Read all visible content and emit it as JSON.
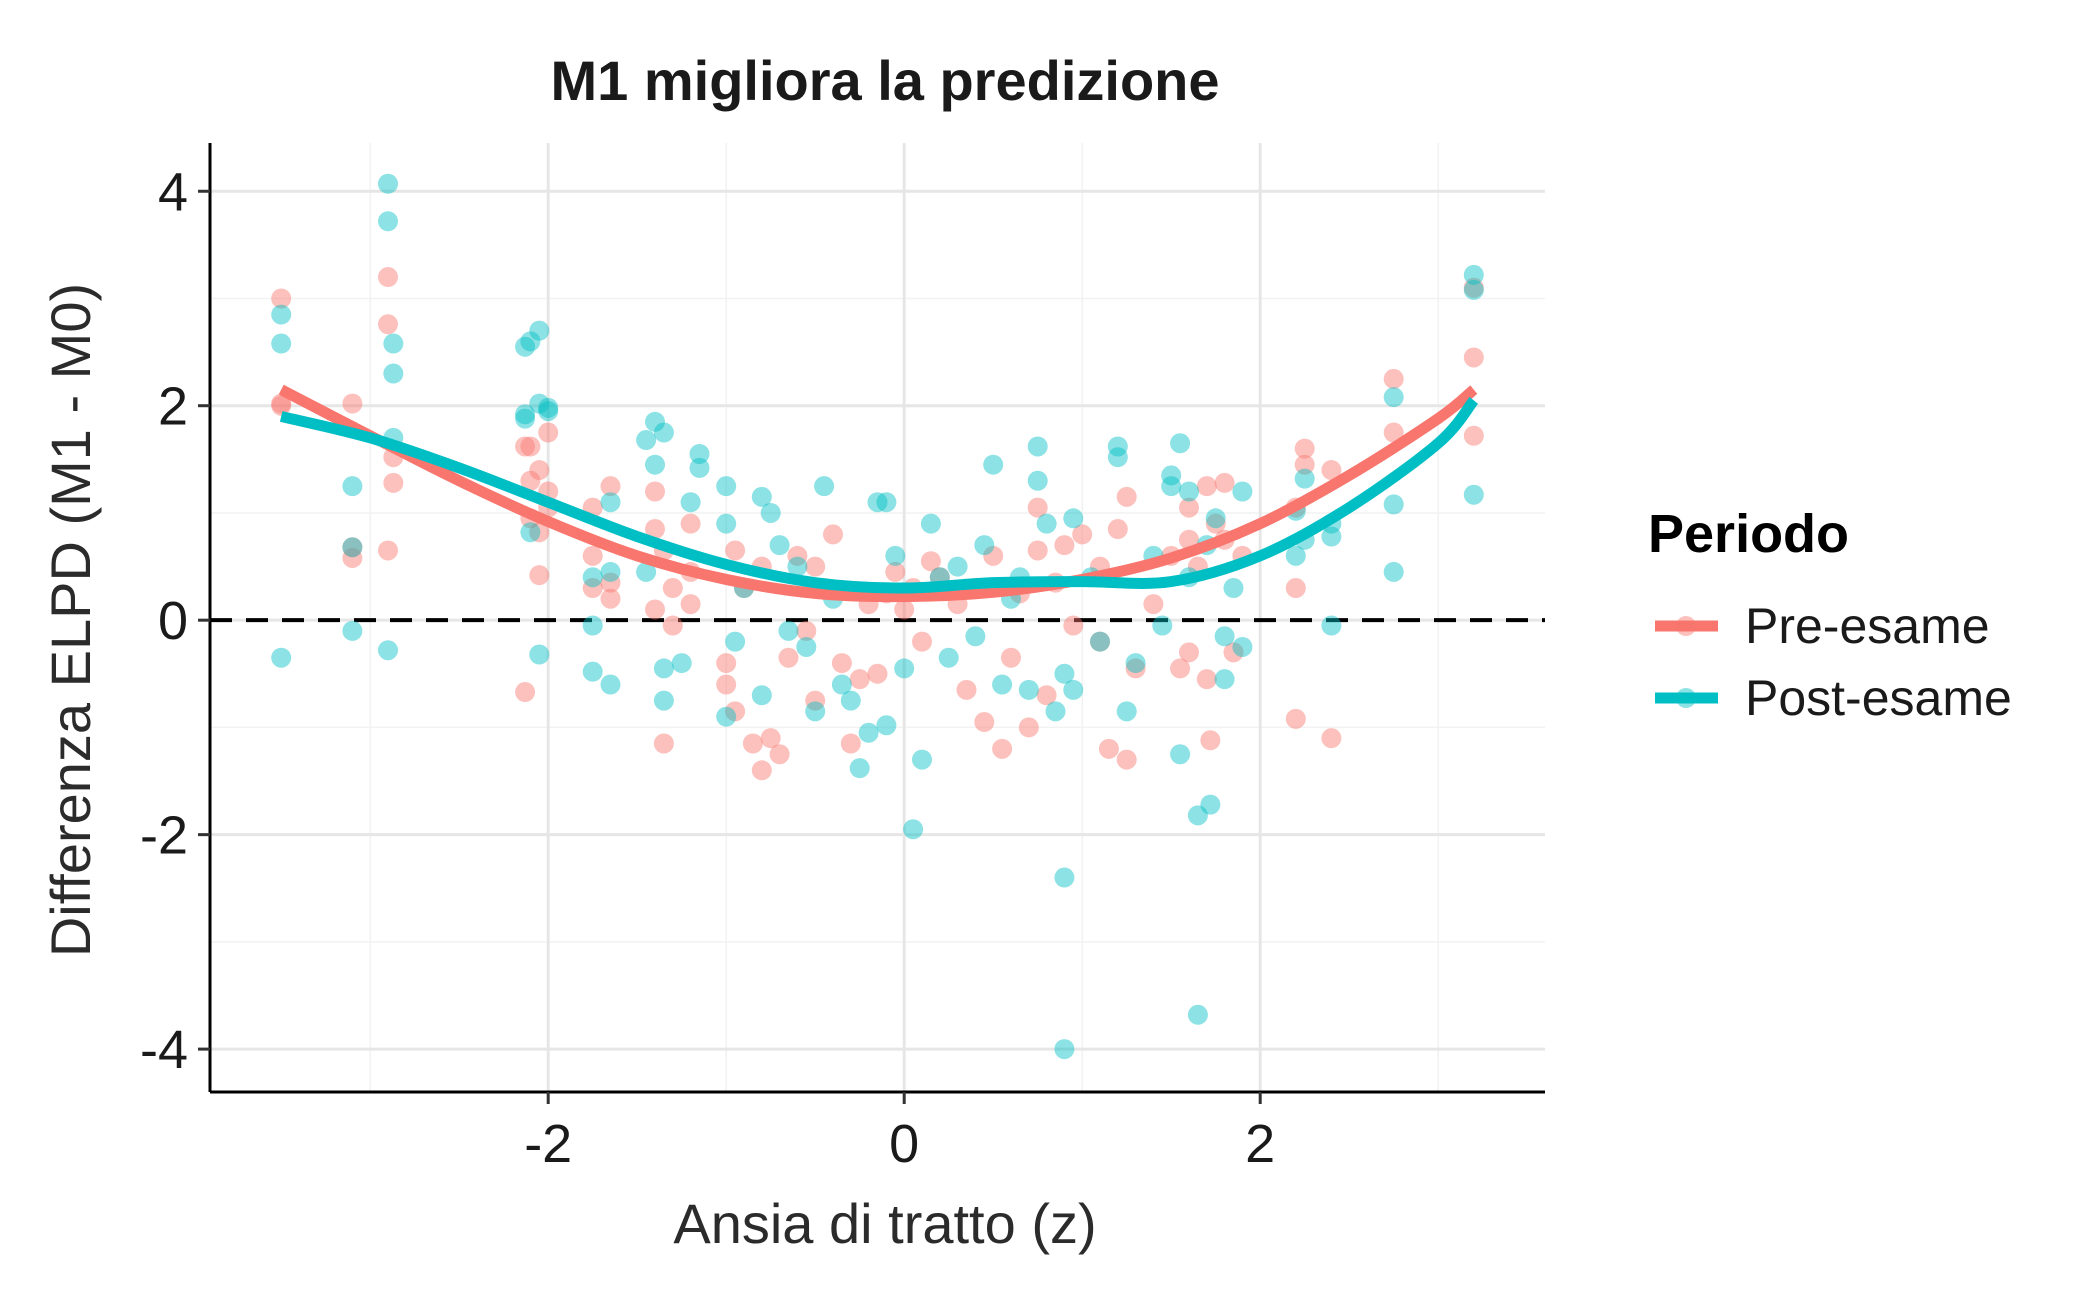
{
  "chart_data": {
    "type": "scatter",
    "title": "M1 migliora la predizione",
    "xlabel": "Ansia di tratto (z)",
    "ylabel": "Differenza ELPD (M1 - M0)",
    "xlim": [
      -3.9,
      3.6
    ],
    "ylim": [
      -4.4,
      4.45
    ],
    "xticks": [
      -2,
      0,
      2
    ],
    "xtick_labels": [
      "-2",
      "0",
      "2"
    ],
    "yticks": [
      -4,
      -2,
      0,
      2,
      4
    ],
    "ytick_labels": [
      "-4",
      "-2",
      "0",
      "2",
      "4"
    ],
    "grid": true,
    "reference_line": {
      "y": 0,
      "style": "dashed",
      "color": "#000000"
    },
    "legend": {
      "title": "Periodo",
      "position": "right"
    },
    "series": [
      {
        "name": "Pre-esame",
        "color": "#F8766D",
        "points": [
          [
            -3.5,
            3.0
          ],
          [
            -3.5,
            2.0
          ],
          [
            -3.5,
            2.02
          ],
          [
            -3.1,
            2.02
          ],
          [
            -3.1,
            0.58
          ],
          [
            -3.1,
            0.68
          ],
          [
            -2.9,
            3.2
          ],
          [
            -2.9,
            2.76
          ],
          [
            -2.9,
            0.65
          ],
          [
            -2.87,
            1.28
          ],
          [
            -2.87,
            1.52
          ],
          [
            -2.13,
            1.62
          ],
          [
            -2.13,
            -0.67
          ],
          [
            -2.1,
            1.62
          ],
          [
            -2.1,
            1.3
          ],
          [
            -2.1,
            0.95
          ],
          [
            -2.05,
            1.4
          ],
          [
            -2.05,
            0.82
          ],
          [
            -2.05,
            0.42
          ],
          [
            -2.0,
            1.75
          ],
          [
            -2.0,
            1.2
          ],
          [
            -2.0,
            1.05
          ],
          [
            -1.75,
            0.6
          ],
          [
            -1.75,
            0.3
          ],
          [
            -1.75,
            1.05
          ],
          [
            -1.65,
            1.25
          ],
          [
            -1.65,
            0.2
          ],
          [
            -1.65,
            0.35
          ],
          [
            -1.4,
            1.2
          ],
          [
            -1.4,
            0.85
          ],
          [
            -1.4,
            0.1
          ],
          [
            -1.35,
            -1.15
          ],
          [
            -1.35,
            0.65
          ],
          [
            -1.3,
            0.3
          ],
          [
            -1.3,
            -0.05
          ],
          [
            -1.2,
            0.9
          ],
          [
            -1.2,
            0.15
          ],
          [
            -1.2,
            0.45
          ],
          [
            -1.0,
            -0.4
          ],
          [
            -1.0,
            -0.6
          ],
          [
            -0.95,
            -0.85
          ],
          [
            -0.95,
            0.65
          ],
          [
            -0.9,
            0.3
          ],
          [
            -0.85,
            -1.15
          ],
          [
            -0.8,
            -1.4
          ],
          [
            -0.8,
            0.5
          ],
          [
            -0.75,
            -1.1
          ],
          [
            -0.7,
            -1.25
          ],
          [
            -0.65,
            -0.35
          ],
          [
            -0.6,
            0.6
          ],
          [
            -0.55,
            -0.1
          ],
          [
            -0.5,
            -0.75
          ],
          [
            -0.5,
            0.5
          ],
          [
            -0.45,
            0.3
          ],
          [
            -0.4,
            0.8
          ],
          [
            -0.35,
            -0.4
          ],
          [
            -0.3,
            -1.15
          ],
          [
            -0.25,
            -0.55
          ],
          [
            -0.2,
            0.15
          ],
          [
            -0.15,
            -0.5
          ],
          [
            -0.1,
            0.25
          ],
          [
            -0.05,
            0.45
          ],
          [
            0.0,
            0.1
          ],
          [
            0.05,
            0.3
          ],
          [
            0.1,
            -0.2
          ],
          [
            0.15,
            0.55
          ],
          [
            0.2,
            0.4
          ],
          [
            0.3,
            0.15
          ],
          [
            0.35,
            -0.65
          ],
          [
            0.4,
            0.3
          ],
          [
            0.45,
            -0.95
          ],
          [
            0.5,
            0.6
          ],
          [
            0.55,
            -1.2
          ],
          [
            0.6,
            -0.35
          ],
          [
            0.65,
            0.25
          ],
          [
            0.7,
            -1.0
          ],
          [
            0.75,
            1.05
          ],
          [
            0.75,
            0.65
          ],
          [
            0.8,
            -0.7
          ],
          [
            0.85,
            0.35
          ],
          [
            0.9,
            0.7
          ],
          [
            0.95,
            -0.05
          ],
          [
            1.0,
            0.8
          ],
          [
            1.1,
            0.5
          ],
          [
            1.1,
            -0.2
          ],
          [
            1.15,
            -1.2
          ],
          [
            1.2,
            0.85
          ],
          [
            1.25,
            1.15
          ],
          [
            1.25,
            -1.3
          ],
          [
            1.3,
            -0.45
          ],
          [
            1.4,
            0.15
          ],
          [
            1.5,
            0.6
          ],
          [
            1.55,
            -0.45
          ],
          [
            1.6,
            1.05
          ],
          [
            1.6,
            0.75
          ],
          [
            1.6,
            -0.3
          ],
          [
            1.65,
            0.5
          ],
          [
            1.7,
            1.25
          ],
          [
            1.7,
            -0.55
          ],
          [
            1.72,
            -1.12
          ],
          [
            1.75,
            0.9
          ],
          [
            1.8,
            1.28
          ],
          [
            1.8,
            0.75
          ],
          [
            1.85,
            -0.3
          ],
          [
            1.9,
            0.6
          ],
          [
            2.2,
            1.05
          ],
          [
            2.2,
            0.3
          ],
          [
            2.2,
            -0.92
          ],
          [
            2.25,
            1.6
          ],
          [
            2.25,
            1.45
          ],
          [
            2.4,
            1.4
          ],
          [
            2.4,
            -1.1
          ],
          [
            2.75,
            2.25
          ],
          [
            2.75,
            1.75
          ],
          [
            3.2,
            2.45
          ],
          [
            3.2,
            1.72
          ],
          [
            3.2,
            3.1
          ]
        ],
        "trend": [
          [
            -3.5,
            2.15
          ],
          [
            -3.0,
            1.72
          ],
          [
            -2.5,
            1.3
          ],
          [
            -2.0,
            0.92
          ],
          [
            -1.5,
            0.6
          ],
          [
            -1.0,
            0.38
          ],
          [
            -0.5,
            0.25
          ],
          [
            0.0,
            0.22
          ],
          [
            0.5,
            0.26
          ],
          [
            1.0,
            0.38
          ],
          [
            1.5,
            0.58
          ],
          [
            2.0,
            0.9
          ],
          [
            2.5,
            1.35
          ],
          [
            3.0,
            1.88
          ],
          [
            3.2,
            2.15
          ]
        ]
      },
      {
        "name": "Post-esame",
        "color": "#00BFC4",
        "points": [
          [
            -3.5,
            2.85
          ],
          [
            -3.5,
            2.58
          ],
          [
            -3.5,
            -0.35
          ],
          [
            -3.1,
            1.25
          ],
          [
            -3.1,
            0.68
          ],
          [
            -3.1,
            -0.1
          ],
          [
            -2.9,
            4.07
          ],
          [
            -2.9,
            3.72
          ],
          [
            -2.9,
            -0.28
          ],
          [
            -2.87,
            2.58
          ],
          [
            -2.87,
            2.3
          ],
          [
            -2.87,
            1.7
          ],
          [
            -2.13,
            2.55
          ],
          [
            -2.13,
            1.92
          ],
          [
            -2.13,
            1.88
          ],
          [
            -2.1,
            2.6
          ],
          [
            -2.1,
            0.82
          ],
          [
            -2.05,
            2.7
          ],
          [
            -2.05,
            2.02
          ],
          [
            -2.05,
            -0.32
          ],
          [
            -2.0,
            1.98
          ],
          [
            -2.0,
            1.95
          ],
          [
            -1.75,
            0.4
          ],
          [
            -1.75,
            -0.05
          ],
          [
            -1.75,
            -0.48
          ],
          [
            -1.65,
            1.1
          ],
          [
            -1.65,
            -0.6
          ],
          [
            -1.65,
            0.45
          ],
          [
            -1.45,
            1.68
          ],
          [
            -1.45,
            0.45
          ],
          [
            -1.4,
            1.85
          ],
          [
            -1.4,
            1.45
          ],
          [
            -1.35,
            1.75
          ],
          [
            -1.35,
            -0.45
          ],
          [
            -1.35,
            -0.75
          ],
          [
            -1.25,
            -0.4
          ],
          [
            -1.2,
            1.1
          ],
          [
            -1.15,
            1.55
          ],
          [
            -1.15,
            1.42
          ],
          [
            -1.0,
            1.25
          ],
          [
            -1.0,
            0.9
          ],
          [
            -1.0,
            -0.9
          ],
          [
            -0.95,
            -0.2
          ],
          [
            -0.9,
            0.3
          ],
          [
            -0.8,
            1.15
          ],
          [
            -0.8,
            -0.7
          ],
          [
            -0.75,
            1.0
          ],
          [
            -0.7,
            0.7
          ],
          [
            -0.65,
            -0.1
          ],
          [
            -0.6,
            0.5
          ],
          [
            -0.55,
            -0.25
          ],
          [
            -0.5,
            -0.85
          ],
          [
            -0.45,
            1.25
          ],
          [
            -0.4,
            0.2
          ],
          [
            -0.35,
            -0.6
          ],
          [
            -0.3,
            -0.75
          ],
          [
            -0.25,
            -1.38
          ],
          [
            -0.2,
            -1.05
          ],
          [
            -0.15,
            1.1
          ],
          [
            -0.1,
            1.1
          ],
          [
            -0.1,
            -0.98
          ],
          [
            -0.05,
            0.6
          ],
          [
            0.0,
            -0.45
          ],
          [
            0.05,
            -1.95
          ],
          [
            0.1,
            -1.3
          ],
          [
            0.15,
            0.9
          ],
          [
            0.2,
            0.4
          ],
          [
            0.25,
            -0.35
          ],
          [
            0.3,
            0.5
          ],
          [
            0.4,
            -0.15
          ],
          [
            0.45,
            0.7
          ],
          [
            0.5,
            1.45
          ],
          [
            0.55,
            -0.6
          ],
          [
            0.6,
            0.2
          ],
          [
            0.65,
            0.4
          ],
          [
            0.7,
            -0.65
          ],
          [
            0.75,
            1.62
          ],
          [
            0.75,
            1.3
          ],
          [
            0.8,
            0.9
          ],
          [
            0.85,
            -0.85
          ],
          [
            0.9,
            -0.5
          ],
          [
            0.9,
            -2.4
          ],
          [
            0.9,
            -4.0
          ],
          [
            0.95,
            -0.65
          ],
          [
            0.95,
            0.95
          ],
          [
            1.05,
            0.4
          ],
          [
            1.1,
            -0.2
          ],
          [
            1.2,
            1.62
          ],
          [
            1.2,
            1.52
          ],
          [
            1.25,
            -0.85
          ],
          [
            1.3,
            -0.4
          ],
          [
            1.4,
            0.6
          ],
          [
            1.45,
            -0.05
          ],
          [
            1.5,
            1.35
          ],
          [
            1.5,
            1.25
          ],
          [
            1.55,
            1.65
          ],
          [
            1.55,
            -1.25
          ],
          [
            1.6,
            1.2
          ],
          [
            1.6,
            0.4
          ],
          [
            1.65,
            -1.82
          ],
          [
            1.65,
            -3.68
          ],
          [
            1.7,
            0.7
          ],
          [
            1.72,
            -1.72
          ],
          [
            1.75,
            0.95
          ],
          [
            1.8,
            -0.15
          ],
          [
            1.8,
            -0.55
          ],
          [
            1.85,
            0.3
          ],
          [
            1.9,
            1.2
          ],
          [
            1.9,
            -0.25
          ],
          [
            2.2,
            1.02
          ],
          [
            2.2,
            0.6
          ],
          [
            2.25,
            1.32
          ],
          [
            2.25,
            0.75
          ],
          [
            2.4,
            0.9
          ],
          [
            2.4,
            0.78
          ],
          [
            2.4,
            -0.05
          ],
          [
            2.75,
            2.08
          ],
          [
            2.75,
            1.08
          ],
          [
            2.75,
            0.45
          ],
          [
            3.2,
            3.22
          ],
          [
            3.2,
            3.08
          ],
          [
            3.2,
            1.17
          ]
        ],
        "trend": [
          [
            -3.5,
            1.9
          ],
          [
            -3.0,
            1.7
          ],
          [
            -2.5,
            1.42
          ],
          [
            -2.0,
            1.1
          ],
          [
            -1.5,
            0.78
          ],
          [
            -1.0,
            0.52
          ],
          [
            -0.5,
            0.35
          ],
          [
            0.0,
            0.3
          ],
          [
            0.5,
            0.35
          ],
          [
            1.0,
            0.36
          ],
          [
            1.5,
            0.36
          ],
          [
            2.0,
            0.6
          ],
          [
            2.5,
            1.05
          ],
          [
            3.0,
            1.65
          ],
          [
            3.2,
            2.05
          ]
        ]
      }
    ]
  }
}
